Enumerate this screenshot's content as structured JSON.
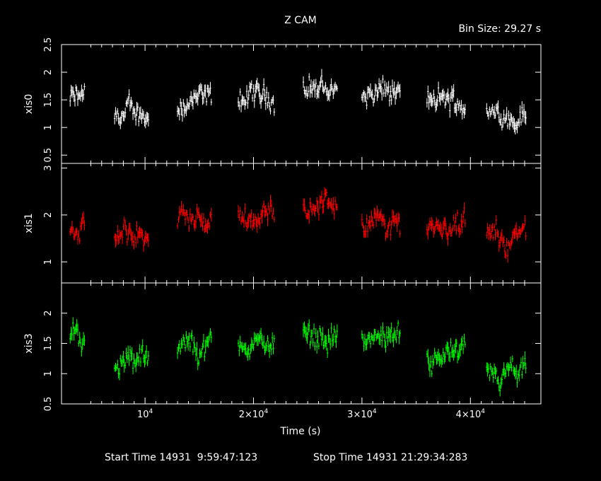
{
  "header": {
    "title": "Z CAM",
    "bin_size": "Bin Size: 29.27 s"
  },
  "footer": {
    "start_time": "Start Time 14931  9:59:47:123",
    "stop_time": "Stop Time 14931 21:29:34:283"
  },
  "chart_data": {
    "type": "scatter",
    "xlabel": "Time (s)",
    "xlim": [
      2300,
      46500
    ],
    "x_ticks": [
      {
        "value": 10000,
        "base": "10",
        "exp": "4",
        "mult": ""
      },
      {
        "value": 20000,
        "base": "10",
        "exp": "4",
        "mult": "2×"
      },
      {
        "value": 30000,
        "base": "10",
        "exp": "4",
        "mult": "3×"
      },
      {
        "value": 40000,
        "base": "10",
        "exp": "4",
        "mult": "4×"
      }
    ],
    "segments": [
      {
        "x0": 3100,
        "x1": 4500,
        "means": [
          1.5,
          1.75,
          1.65
        ]
      },
      {
        "x0": 7200,
        "x1": 10400,
        "means": [
          1.25,
          1.55,
          1.2
        ]
      },
      {
        "x0": 13000,
        "x1": 16200,
        "means": [
          1.45,
          1.85,
          1.45
        ]
      },
      {
        "x0": 18600,
        "x1": 22000,
        "means": [
          1.55,
          2.0,
          1.5
        ]
      },
      {
        "x0": 24600,
        "x1": 27800,
        "means": [
          1.7,
          2.25,
          1.65
        ]
      },
      {
        "x0": 30000,
        "x1": 33600,
        "means": [
          1.6,
          1.8,
          1.55
        ]
      },
      {
        "x0": 36000,
        "x1": 39600,
        "means": [
          1.45,
          1.8,
          1.3
        ]
      },
      {
        "x0": 41500,
        "x1": 45200,
        "means": [
          1.25,
          1.5,
          0.95
        ]
      }
    ],
    "panels": [
      {
        "ylabel": "xis0",
        "ylim": [
          0.35,
          2.5
        ],
        "yticks": [
          0.5,
          1,
          1.5,
          2,
          2.5
        ],
        "color": "#ffffff"
      },
      {
        "ylabel": "xis1",
        "ylim": [
          0.55,
          3.1
        ],
        "yticks": [
          1,
          2,
          3
        ],
        "color": "#ff0000"
      },
      {
        "ylabel": "xis3",
        "ylim": [
          0.5,
          2.5
        ],
        "yticks": [
          0.5,
          1,
          1.5,
          2
        ],
        "color": "#00ff00"
      }
    ]
  }
}
